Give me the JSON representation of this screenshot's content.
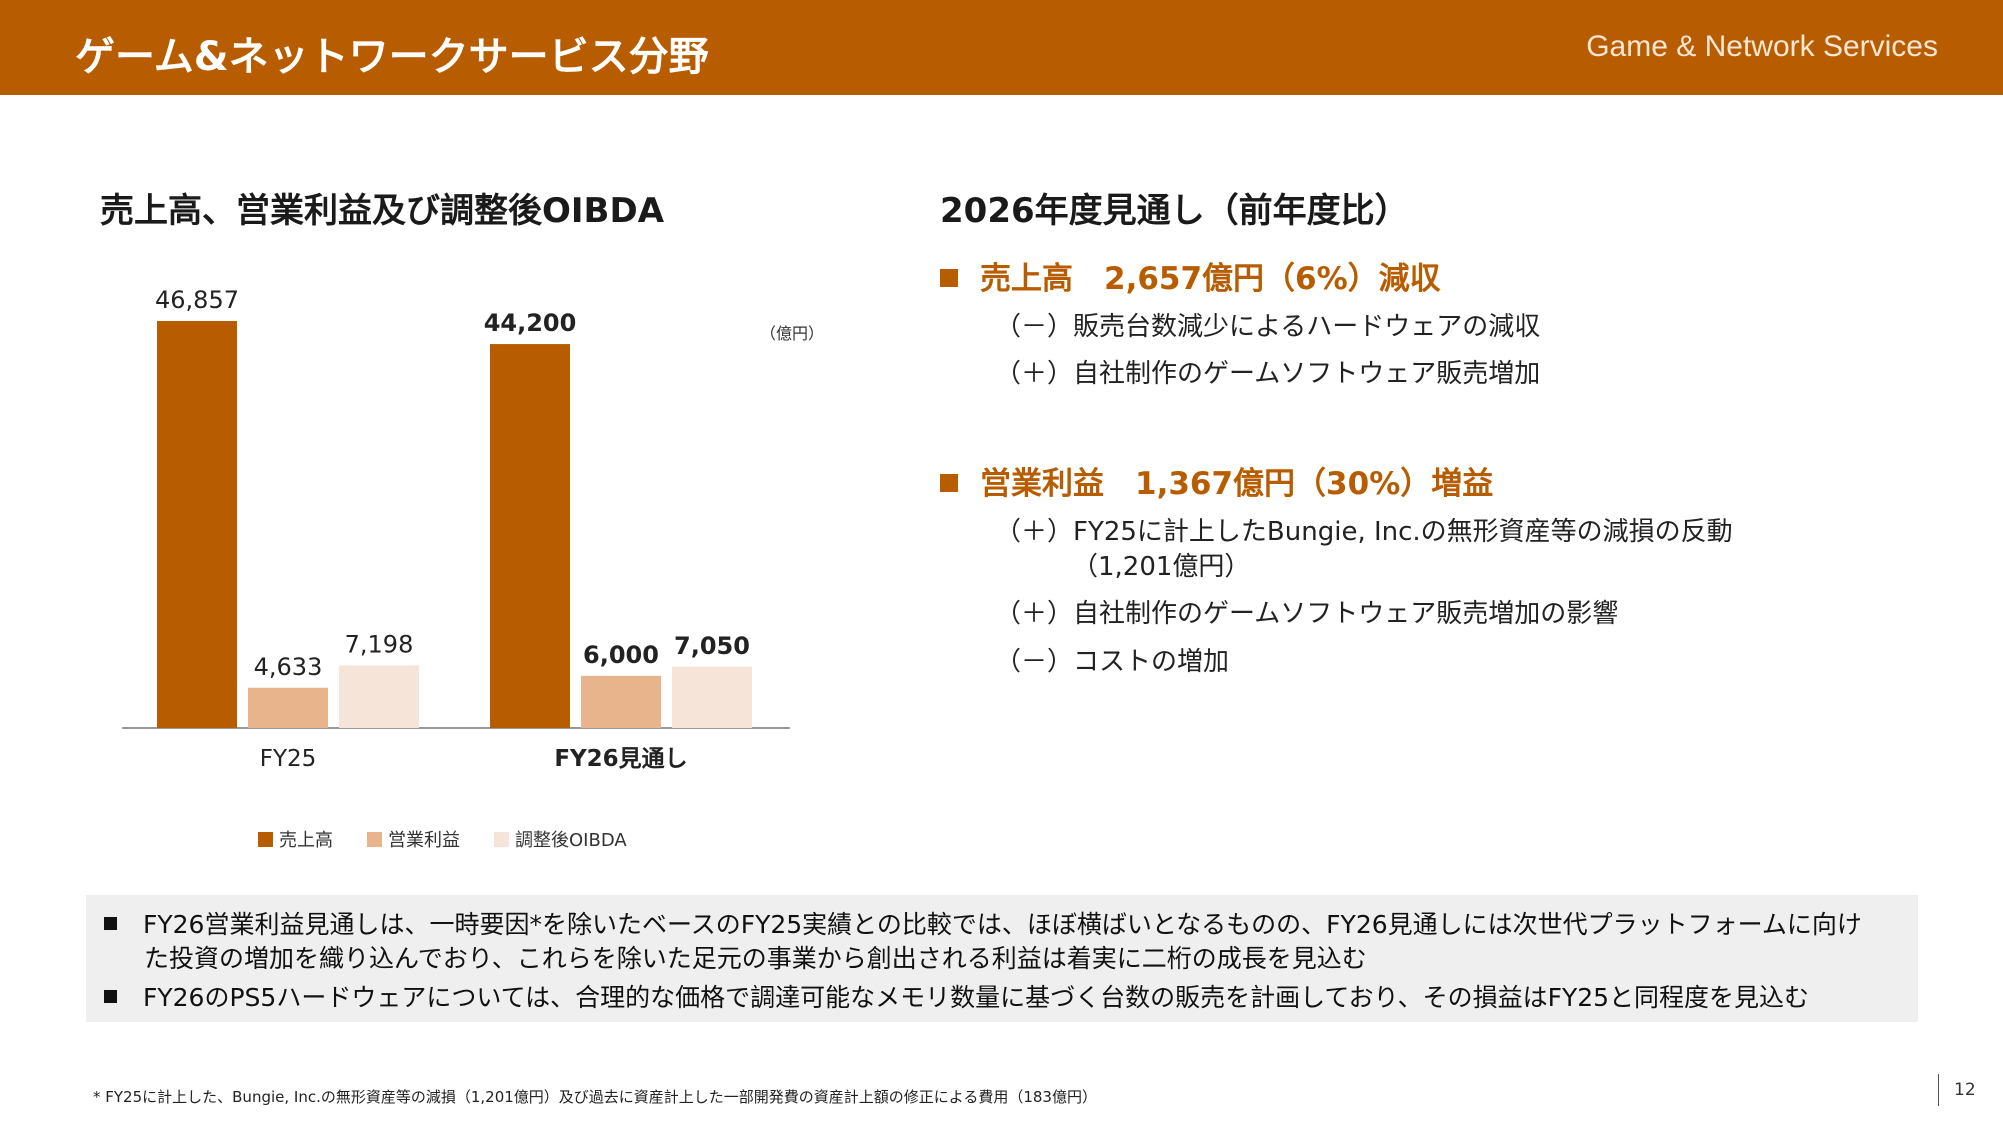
{
  "header": {
    "title": "ゲーム&ネットワークサービス分野",
    "subtitle_en": "Game & Network Services"
  },
  "left": {
    "title": "売上高、営業利益及び調整後OIBDA",
    "unit": "（億円）"
  },
  "chart_data": {
    "type": "bar",
    "categories": [
      "FY25",
      "FY26見通し"
    ],
    "category_bold": [
      false,
      true
    ],
    "series": [
      {
        "name": "売上高",
        "color": "#b85c00",
        "values": [
          46857,
          44200
        ],
        "labels": [
          "46,857",
          "44,200"
        ]
      },
      {
        "name": "営業利益",
        "color": "#e8b48c",
        "values": [
          4633,
          6000
        ],
        "labels": [
          "4,633",
          "6,000"
        ]
      },
      {
        "name": "調整後OIBDA",
        "color": "#f7e4d8",
        "values": [
          7198,
          7050
        ],
        "labels": [
          "7,198",
          "7,050"
        ]
      }
    ],
    "ylim": [
      0,
      51000
    ],
    "legend_position": "bottom",
    "grid": false
  },
  "right": {
    "title": "2026年度見通し（前年度比）",
    "items": [
      {
        "head": "売上高　2,657億円（6%）減収",
        "subs": [
          "（－）販売台数減少によるハードウェアの減収",
          "（＋）自社制作のゲームソフトウェア販売増加"
        ]
      },
      {
        "head": "営業利益　1,367億円（30%）増益",
        "subs": [
          "（＋）FY25に計上したBungie, Inc.の無形資産等の減損の反動",
          "（1,201億円）",
          "（＋）自社制作のゲームソフトウェア販売増加の影響",
          "（－）コストの増加"
        ]
      }
    ]
  },
  "notes": {
    "line1": "FY26営業利益見通しは、一時要因*を除いたベースのFY25実績との比較では、ほぼ横ばいとなるものの、FY26見通しには次世代プラットフォームに向け",
    "line1_cont": "た投資の増加を織り込んでおり、これらを除いた足元の事業から創出される利益は着実に二桁の成長を見込む",
    "line2": "FY26のPS5ハードウェアについては、合理的な価格で調達可能なメモリ数量に基づく台数の販売を計画しており、その損益はFY25と同程度を見込む"
  },
  "footnote": "* FY25に計上した、Bungie, Inc.の無形資産等の減損（1,201億円）及び過去に資産計上した一部開発費の資産計上額の修正による費用（183億円）",
  "page_number": "12"
}
